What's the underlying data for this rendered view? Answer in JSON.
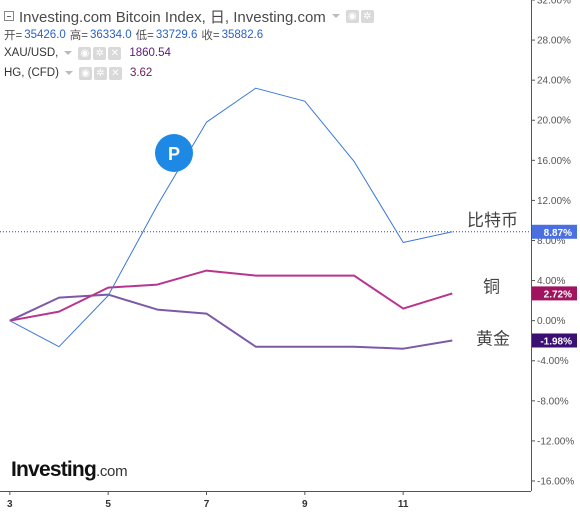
{
  "header": {
    "title": "Investing.com Bitcoin Index, 日, Investing.com",
    "ohlc": [
      {
        "label": "开=",
        "value": "35426.0"
      },
      {
        "label": "高=",
        "value": "36334.0"
      },
      {
        "label": "低=",
        "value": "33729.6"
      },
      {
        "label": "收=",
        "value": "35882.6"
      }
    ]
  },
  "overlays": [
    {
      "name": "XAU/USD,",
      "value": "1860.54"
    },
    {
      "name": "HG, (CFD)",
      "value": "3.62"
    }
  ],
  "logo": {
    "main": "Investing",
    "domain": ".com"
  },
  "marker": {
    "letter": "P"
  },
  "colors": {
    "bitcoin": "#3b78d9",
    "copper": "#b8358f",
    "gold": "#7d59a8",
    "gold_badge": "#3c0f73",
    "copper_badge": "#a0135f",
    "bitcoin_badge": "#4a6fe0"
  },
  "chart_data": {
    "type": "line",
    "x": [
      3,
      4,
      5,
      6,
      7,
      8,
      9,
      10,
      11,
      12
    ],
    "series": [
      {
        "name": "比特币",
        "values": [
          0.0,
          -2.6,
          2.5,
          11.5,
          19.8,
          23.2,
          21.9,
          15.9,
          7.8,
          8.87
        ],
        "end_label": "8.87%",
        "color": "#3b78d9"
      },
      {
        "name": "铜",
        "values": [
          0.0,
          0.9,
          3.3,
          3.6,
          5.0,
          4.5,
          4.5,
          4.5,
          1.2,
          2.72
        ],
        "end_label": "2.72%",
        "color": "#b8358f"
      },
      {
        "name": "黄金",
        "values": [
          0.0,
          2.3,
          2.6,
          1.1,
          0.7,
          -2.6,
          -2.6,
          -2.6,
          -2.8,
          -1.98
        ],
        "end_label": "-1.98%",
        "color": "#7d59a8"
      }
    ],
    "xticks": [
      3,
      5,
      7,
      9,
      11
    ],
    "xtick_labels": [
      "3",
      "5",
      "7",
      "9",
      "11"
    ],
    "yticks": [
      32.0,
      28.0,
      24.0,
      20.0,
      16.0,
      12.0,
      8.0,
      4.0,
      0.0,
      -4.0,
      -8.0,
      -12.0,
      -16.0
    ],
    "ytick_labels": [
      "32.00%",
      "28.00%",
      "24.00%",
      "20.00%",
      "16.00%",
      "12.00%",
      "8.00%",
      "4.00%",
      "0.00%",
      "-4.00%",
      "-8.00%",
      "-12.00%",
      "-16.00%"
    ],
    "xlim": [
      2.8,
      13.6
    ],
    "ylim": [
      -17.0,
      32.0
    ],
    "reference_line": 8.87,
    "grid": false
  }
}
